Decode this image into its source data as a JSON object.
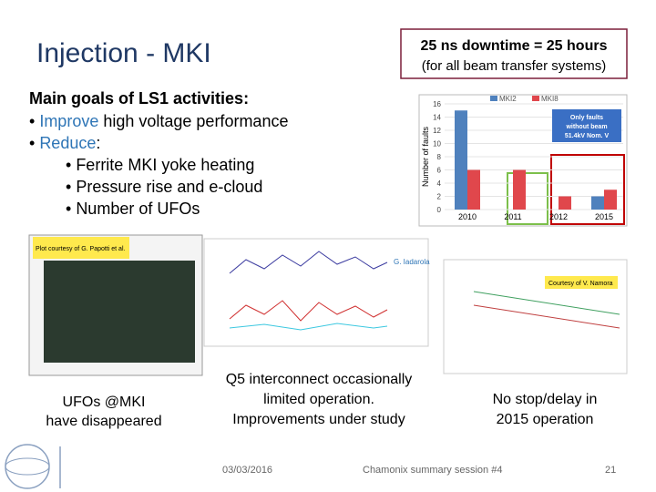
{
  "title": "Injection - MKI",
  "box": {
    "headline": "25 ns downtime = 25 hours",
    "subline": "(for all beam transfer systems)"
  },
  "goals": {
    "heading": "Main goals of LS1 activities:",
    "item1": {
      "highlight": "Improve",
      "rest": " high voltage performance"
    },
    "item2": {
      "highlight": "Reduce",
      "rest": ":"
    },
    "subitems": [
      "Ferrite MKI yoke heating",
      "Pressure rise and e-cloud",
      "Number of UFOs"
    ]
  },
  "chart_data": {
    "type": "bar",
    "y_label": "Number of faults",
    "categories": [
      "2010",
      "2011",
      "2012",
      "2015"
    ],
    "series": [
      {
        "name": "MKI2",
        "color": "#4f81bd",
        "values": [
          15,
          0,
          0,
          2
        ]
      },
      {
        "name": "MKI8",
        "color": "#e0474c",
        "values": [
          6,
          6,
          2,
          3
        ]
      }
    ],
    "ylim": [
      0,
      16
    ],
    "yticks": [
      0,
      2,
      4,
      6,
      8,
      10,
      12,
      14,
      16
    ],
    "annotation": [
      "Only faults",
      "without beam",
      "51.4kV Nom. V"
    ]
  },
  "plot_notes": {
    "left": "Plot courtesy of G. Papotti et al.",
    "middle": "G. Iadarola",
    "right": "Courtesy of V. Namora"
  },
  "captions": {
    "left": [
      "UFOs @MKI",
      "have disappeared"
    ],
    "middle": [
      "Q5 interconnect occasionally",
      "limited operation.",
      "Improvements under study"
    ],
    "right": [
      "No stop/delay in",
      "2015 operation"
    ]
  },
  "footer": {
    "date": "03/03/2016",
    "event": "Chamonix summary session #4",
    "page": "21"
  }
}
